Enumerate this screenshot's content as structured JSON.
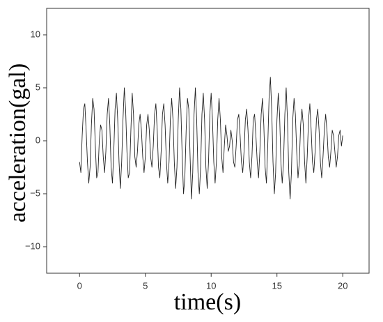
{
  "chart_data": {
    "type": "line",
    "xlabel": "time(s)",
    "ylabel": "acceleration(gal)",
    "xlim": [
      -2.5,
      22
    ],
    "xticks": [
      0,
      5,
      10,
      15,
      20
    ],
    "ylim": [
      -12.5,
      12.5
    ],
    "yticks": [
      {
        "value": -10,
        "label": "−10"
      },
      {
        "value": -5,
        "label": "−5"
      },
      0,
      5,
      10
    ],
    "grid": false,
    "x": [
      0,
      0.1,
      0.2,
      0.3,
      0.4,
      0.5,
      0.6,
      0.7,
      0.8,
      0.9,
      1,
      1.1,
      1.2,
      1.3,
      1.4,
      1.5,
      1.6,
      1.7,
      1.8,
      1.9,
      2,
      2.1,
      2.2,
      2.3,
      2.4,
      2.5,
      2.6,
      2.7,
      2.8,
      2.9,
      3,
      3.1,
      3.2,
      3.3,
      3.4,
      3.5,
      3.6,
      3.7,
      3.8,
      3.9,
      4,
      4.1,
      4.2,
      4.3,
      4.4,
      4.5,
      4.6,
      4.7,
      4.8,
      4.9,
      5,
      5.1,
      5.2,
      5.3,
      5.4,
      5.5,
      5.6,
      5.7,
      5.8,
      5.9,
      6,
      6.1,
      6.2,
      6.3,
      6.4,
      6.5,
      6.6,
      6.7,
      6.8,
      6.9,
      7,
      7.1,
      7.2,
      7.3,
      7.4,
      7.5,
      7.6,
      7.7,
      7.8,
      7.9,
      8,
      8.1,
      8.2,
      8.3,
      8.4,
      8.5,
      8.6,
      8.7,
      8.8,
      8.9,
      9,
      9.1,
      9.2,
      9.3,
      9.4,
      9.5,
      9.6,
      9.7,
      9.8,
      9.9,
      10,
      10.1,
      10.2,
      10.3,
      10.4,
      10.5,
      10.6,
      10.7,
      10.8,
      10.9,
      11,
      11.1,
      11.2,
      11.3,
      11.4,
      11.5,
      11.6,
      11.7,
      11.8,
      11.9,
      12,
      12.1,
      12.2,
      12.3,
      12.4,
      12.5,
      12.6,
      12.7,
      12.8,
      12.9,
      13,
      13.1,
      13.2,
      13.3,
      13.4,
      13.5,
      13.6,
      13.7,
      13.8,
      13.9,
      14,
      14.1,
      14.2,
      14.3,
      14.4,
      14.5,
      14.6,
      14.7,
      14.8,
      14.9,
      15,
      15.1,
      15.2,
      15.3,
      15.4,
      15.5,
      15.6,
      15.7,
      15.8,
      15.9,
      16,
      16.1,
      16.2,
      16.3,
      16.4,
      16.5,
      16.6,
      16.7,
      16.8,
      16.9,
      17,
      17.1,
      17.2,
      17.3,
      17.4,
      17.5,
      17.6,
      17.7,
      17.8,
      17.9,
      18,
      18.1,
      18.2,
      18.3,
      18.4,
      18.5,
      18.6,
      18.7,
      18.8,
      18.9,
      19,
      19.1,
      19.2,
      19.3,
      19.4,
      19.5,
      19.6,
      19.7,
      19.8,
      19.9,
      20
    ],
    "series": [
      {
        "color": "#222222",
        "values": [
          -2.0,
          -3.0,
          0.5,
          3.0,
          3.5,
          1.0,
          -2.0,
          -4.0,
          -2.5,
          1.5,
          4.0,
          3.0,
          -0.5,
          -3.5,
          -3.0,
          0.0,
          1.5,
          1.0,
          -1.5,
          -3.0,
          -1.0,
          2.5,
          4.0,
          1.5,
          -2.5,
          -4.0,
          -1.0,
          3.0,
          4.5,
          2.0,
          -2.0,
          -4.5,
          -2.0,
          2.0,
          5.0,
          3.0,
          -1.0,
          -3.5,
          -3.0,
          1.0,
          4.5,
          2.5,
          -1.5,
          -2.5,
          -1.0,
          1.5,
          2.5,
          1.0,
          -1.5,
          -3.0,
          -1.5,
          1.5,
          2.5,
          1.0,
          -1.5,
          -2.5,
          -0.5,
          2.5,
          3.5,
          1.0,
          -2.5,
          -3.5,
          -1.0,
          2.5,
          3.5,
          1.5,
          -2.0,
          -4.0,
          -2.0,
          2.0,
          4.0,
          2.0,
          -2.0,
          -4.5,
          -2.5,
          2.0,
          5.0,
          3.0,
          -1.5,
          -5.0,
          -3.5,
          1.0,
          4.0,
          3.0,
          -1.5,
          -5.5,
          -3.0,
          2.5,
          5.0,
          2.0,
          -3.0,
          -5.0,
          -2.5,
          2.5,
          4.5,
          2.0,
          -2.5,
          -4.5,
          -2.0,
          2.5,
          4.5,
          2.0,
          -2.0,
          -4.0,
          -2.0,
          2.0,
          4.0,
          2.0,
          -1.5,
          -3.0,
          -0.5,
          1.5,
          0.5,
          -1.0,
          -0.5,
          1.0,
          0.0,
          -2.0,
          -2.5,
          -0.5,
          2.0,
          2.5,
          0.5,
          -2.0,
          -3.0,
          -1.0,
          2.0,
          3.0,
          1.0,
          -2.0,
          -3.5,
          -1.5,
          2.0,
          2.5,
          0.5,
          -2.0,
          -3.5,
          -1.0,
          2.5,
          4.0,
          1.5,
          -2.5,
          -4.0,
          -0.5,
          4.0,
          6.0,
          3.0,
          -2.0,
          -5.0,
          -3.0,
          2.0,
          4.5,
          2.5,
          -2.0,
          -4.0,
          -2.0,
          2.5,
          5.0,
          2.0,
          -3.0,
          -5.5,
          -3.0,
          2.0,
          4.0,
          2.5,
          -1.0,
          -3.5,
          -2.0,
          1.5,
          3.0,
          1.5,
          -2.0,
          -4.0,
          -1.5,
          2.0,
          3.5,
          1.0,
          -2.0,
          -3.0,
          -1.0,
          2.0,
          3.0,
          1.0,
          -2.0,
          -3.5,
          -1.5,
          1.0,
          2.5,
          1.0,
          -1.5,
          -2.5,
          -1.0,
          1.0,
          0.5,
          -1.0,
          -2.5,
          -1.5,
          0.5,
          1.0,
          -0.5,
          0.5
        ]
      }
    ]
  }
}
